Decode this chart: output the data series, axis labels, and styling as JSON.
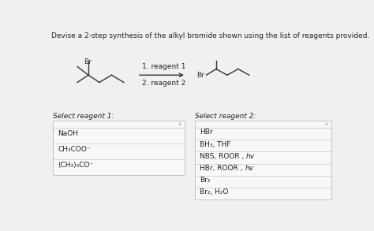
{
  "title_text": "Devise a 2-step synthesis of the alkyl bromide shown using the list of reagents provided.",
  "reagent1_label": "1. reagent 1",
  "reagent2_label": "2. reagent 2",
  "select1_label": "Select reagent 1:",
  "select2_label": "Select reagent 2:",
  "reagent1_list": [
    "NaOH",
    "CH₃COO⁻",
    "(CH₃)₃CO⁻"
  ],
  "reagent2_list": [
    "HBr",
    "BH₃, THF",
    "NBS, ROOR , hv",
    "HBr, ROOR , hv",
    "Br₂",
    "Br₂, H₂O"
  ],
  "bg_color": "#f0f0f0",
  "box_color": "#f8f8f8",
  "box_edge_color": "#bbbbbb",
  "text_color": "#222222",
  "title_fontsize": 6.5,
  "label_fontsize": 6.5,
  "item_fontsize": 6.5,
  "mol_color": "#333333"
}
